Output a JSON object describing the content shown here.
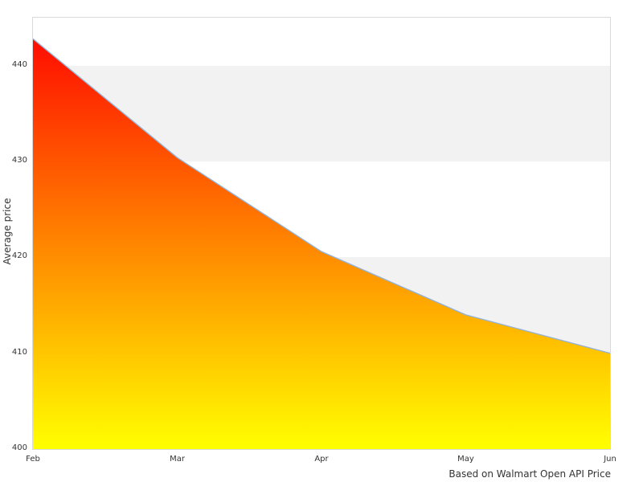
{
  "chart_data": {
    "type": "area",
    "title": "",
    "x": [
      "Feb",
      "Mar",
      "Apr",
      "May",
      "Jun"
    ],
    "series": [
      {
        "name": "Average price",
        "values": [
          442.8,
          430.4,
          420.6,
          414,
          410
        ]
      }
    ],
    "xlabel": "",
    "ylabel": "Average price",
    "yticks": [
      400,
      410,
      420,
      430,
      440
    ],
    "ylim": [
      400,
      445
    ],
    "grid": "alternating horizontal bands every 10 units",
    "legend": "none",
    "caption": "Based on Walmart Open API Price",
    "colors": {
      "area_gradient_top": "#ff0000",
      "area_gradient_bottom": "#ffff00",
      "line": "#94b3d6",
      "band": "#f2f2f2",
      "plot_border": "#d9d9d9",
      "text": "#333333",
      "background": "#ffffff"
    }
  }
}
